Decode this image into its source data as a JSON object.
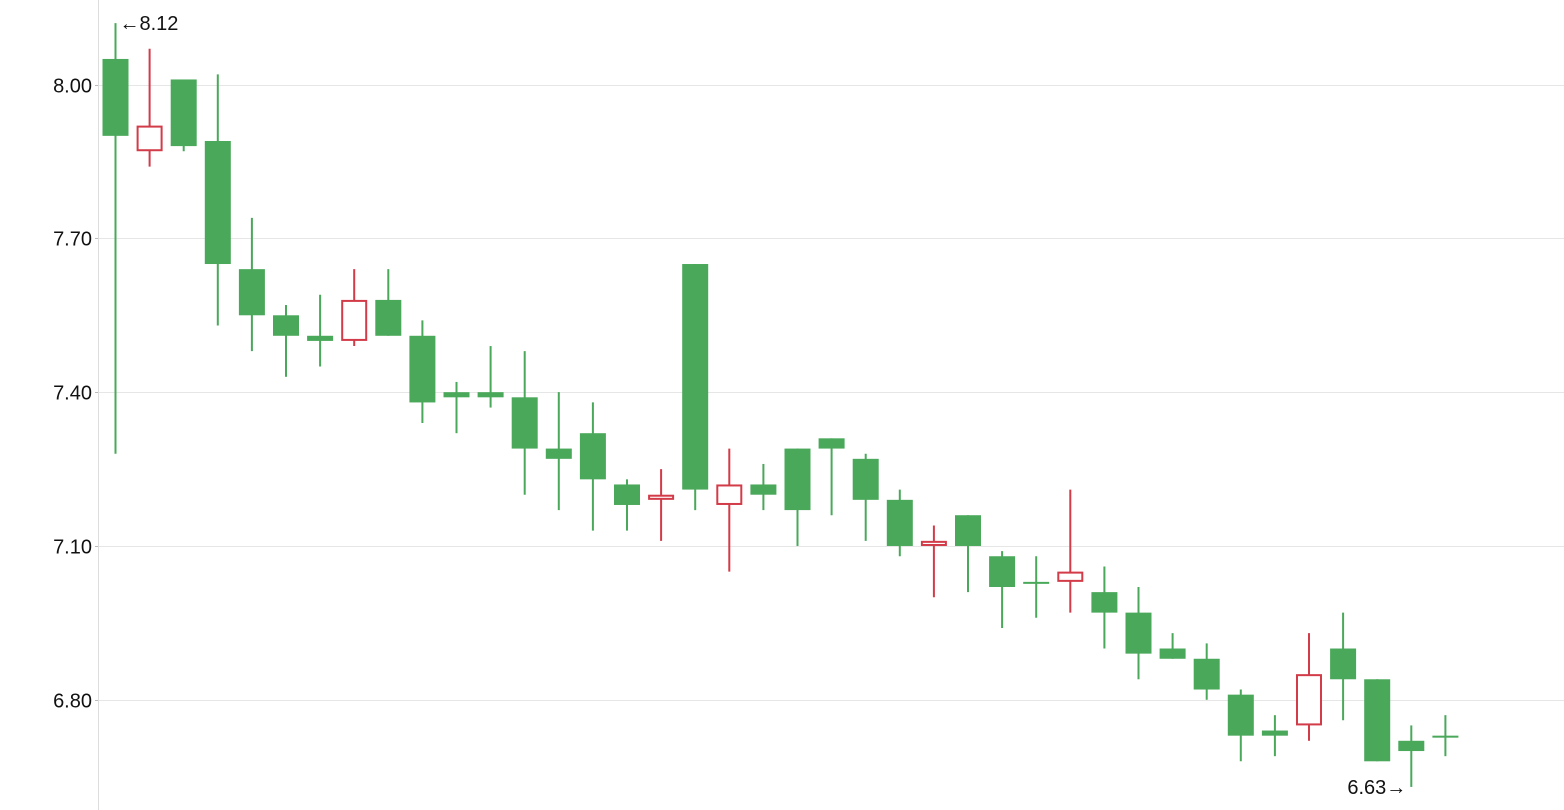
{
  "chart_data": {
    "type": "candlestick",
    "title": "",
    "xlabel": "",
    "ylabel": "",
    "ylim": [
      6.585,
      8.165
    ],
    "yticks": [
      {
        "value": 8.0,
        "label": "8.00"
      },
      {
        "value": 7.7,
        "label": "7.70"
      },
      {
        "value": 7.4,
        "label": "7.40"
      },
      {
        "value": 7.1,
        "label": "7.10"
      },
      {
        "value": 6.8,
        "label": "6.80"
      }
    ],
    "grid": true,
    "colors": {
      "down": "#4aa85a",
      "up": "#d23b48",
      "grid": "#e6e6e6",
      "axis": "#dddddd",
      "text": "#111111"
    },
    "candles": [
      {
        "open": 8.05,
        "high": 8.12,
        "low": 7.28,
        "close": 7.9
      },
      {
        "open": 7.87,
        "high": 8.07,
        "low": 7.84,
        "close": 7.92
      },
      {
        "open": 8.01,
        "high": 8.01,
        "low": 7.87,
        "close": 7.88
      },
      {
        "open": 7.89,
        "high": 8.02,
        "low": 7.53,
        "close": 7.65
      },
      {
        "open": 7.64,
        "high": 7.74,
        "low": 7.48,
        "close": 7.55
      },
      {
        "open": 7.55,
        "high": 7.57,
        "low": 7.43,
        "close": 7.51
      },
      {
        "open": 7.51,
        "high": 7.59,
        "low": 7.45,
        "close": 7.5
      },
      {
        "open": 7.5,
        "high": 7.64,
        "low": 7.49,
        "close": 7.58
      },
      {
        "open": 7.58,
        "high": 7.64,
        "low": 7.51,
        "close": 7.51
      },
      {
        "open": 7.51,
        "high": 7.54,
        "low": 7.34,
        "close": 7.38
      },
      {
        "open": 7.4,
        "high": 7.42,
        "low": 7.32,
        "close": 7.39
      },
      {
        "open": 7.4,
        "high": 7.49,
        "low": 7.37,
        "close": 7.39
      },
      {
        "open": 7.39,
        "high": 7.48,
        "low": 7.2,
        "close": 7.29
      },
      {
        "open": 7.29,
        "high": 7.4,
        "low": 7.17,
        "close": 7.27
      },
      {
        "open": 7.32,
        "high": 7.38,
        "low": 7.13,
        "close": 7.23
      },
      {
        "open": 7.22,
        "high": 7.23,
        "low": 7.13,
        "close": 7.18
      },
      {
        "open": 7.19,
        "high": 7.25,
        "low": 7.11,
        "close": 7.2
      },
      {
        "open": 7.65,
        "high": 7.65,
        "low": 7.17,
        "close": 7.21
      },
      {
        "open": 7.18,
        "high": 7.29,
        "low": 7.05,
        "close": 7.22
      },
      {
        "open": 7.22,
        "high": 7.26,
        "low": 7.17,
        "close": 7.2
      },
      {
        "open": 7.29,
        "high": 7.29,
        "low": 7.1,
        "close": 7.17
      },
      {
        "open": 7.31,
        "high": 7.31,
        "low": 7.16,
        "close": 7.29
      },
      {
        "open": 7.27,
        "high": 7.28,
        "low": 7.11,
        "close": 7.19
      },
      {
        "open": 7.19,
        "high": 7.21,
        "low": 7.08,
        "close": 7.1
      },
      {
        "open": 7.1,
        "high": 7.14,
        "low": 7.0,
        "close": 7.11
      },
      {
        "open": 7.16,
        "high": 7.16,
        "low": 7.01,
        "close": 7.1
      },
      {
        "open": 7.08,
        "high": 7.09,
        "low": 6.94,
        "close": 7.02
      },
      {
        "open": 7.03,
        "high": 7.08,
        "low": 6.96,
        "close": 7.03
      },
      {
        "open": 7.03,
        "high": 7.21,
        "low": 6.97,
        "close": 7.05
      },
      {
        "open": 7.01,
        "high": 7.06,
        "low": 6.9,
        "close": 6.97
      },
      {
        "open": 6.97,
        "high": 7.02,
        "low": 6.84,
        "close": 6.89
      },
      {
        "open": 6.9,
        "high": 6.93,
        "low": 6.88,
        "close": 6.88
      },
      {
        "open": 6.88,
        "high": 6.91,
        "low": 6.8,
        "close": 6.82
      },
      {
        "open": 6.81,
        "high": 6.82,
        "low": 6.68,
        "close": 6.73
      },
      {
        "open": 6.74,
        "high": 6.77,
        "low": 6.69,
        "close": 6.73
      },
      {
        "open": 6.75,
        "high": 6.93,
        "low": 6.72,
        "close": 6.85
      },
      {
        "open": 6.9,
        "high": 6.97,
        "low": 6.76,
        "close": 6.84
      },
      {
        "open": 6.84,
        "high": 6.84,
        "low": 6.68,
        "close": 6.68
      },
      {
        "open": 6.72,
        "high": 6.75,
        "low": 6.63,
        "close": 6.7
      },
      {
        "open": 6.73,
        "high": 6.77,
        "low": 6.69,
        "close": 6.73
      }
    ],
    "annotations": [
      {
        "text": "←8.12",
        "candle_index": 0,
        "value": 8.12,
        "anchor": "right-of-high"
      },
      {
        "text": "6.63→",
        "candle_index": 38,
        "value": 6.63,
        "anchor": "left-of-low"
      }
    ]
  }
}
